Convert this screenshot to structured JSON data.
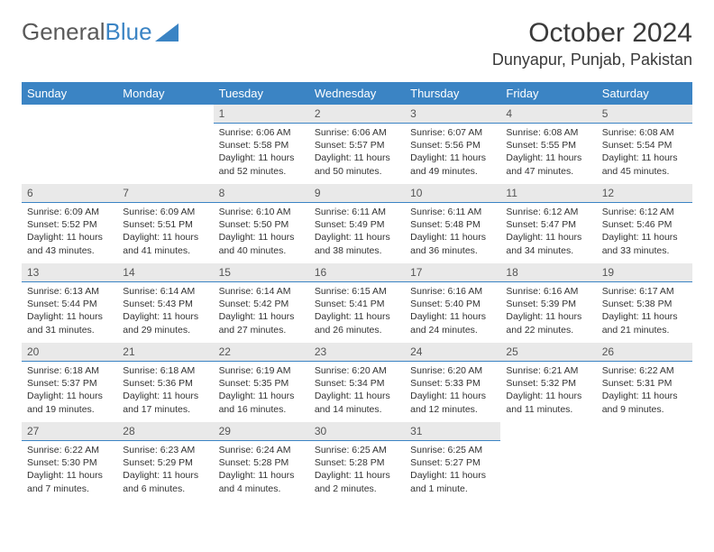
{
  "brand": {
    "part1": "General",
    "part2": "Blue"
  },
  "title": "October 2024",
  "location": "Dunyapur, Punjab, Pakistan",
  "colors": {
    "header_bg": "#3b84c4",
    "header_text": "#ffffff",
    "daynum_bg": "#e9e9e9",
    "daynum_border": "#3b84c4",
    "body_text": "#333333",
    "background": "#ffffff"
  },
  "weekdays": [
    "Sunday",
    "Monday",
    "Tuesday",
    "Wednesday",
    "Thursday",
    "Friday",
    "Saturday"
  ],
  "weeks": [
    [
      null,
      null,
      {
        "n": "1",
        "sunrise": "Sunrise: 6:06 AM",
        "sunset": "Sunset: 5:58 PM",
        "day": "Daylight: 11 hours and 52 minutes."
      },
      {
        "n": "2",
        "sunrise": "Sunrise: 6:06 AM",
        "sunset": "Sunset: 5:57 PM",
        "day": "Daylight: 11 hours and 50 minutes."
      },
      {
        "n": "3",
        "sunrise": "Sunrise: 6:07 AM",
        "sunset": "Sunset: 5:56 PM",
        "day": "Daylight: 11 hours and 49 minutes."
      },
      {
        "n": "4",
        "sunrise": "Sunrise: 6:08 AM",
        "sunset": "Sunset: 5:55 PM",
        "day": "Daylight: 11 hours and 47 minutes."
      },
      {
        "n": "5",
        "sunrise": "Sunrise: 6:08 AM",
        "sunset": "Sunset: 5:54 PM",
        "day": "Daylight: 11 hours and 45 minutes."
      }
    ],
    [
      {
        "n": "6",
        "sunrise": "Sunrise: 6:09 AM",
        "sunset": "Sunset: 5:52 PM",
        "day": "Daylight: 11 hours and 43 minutes."
      },
      {
        "n": "7",
        "sunrise": "Sunrise: 6:09 AM",
        "sunset": "Sunset: 5:51 PM",
        "day": "Daylight: 11 hours and 41 minutes."
      },
      {
        "n": "8",
        "sunrise": "Sunrise: 6:10 AM",
        "sunset": "Sunset: 5:50 PM",
        "day": "Daylight: 11 hours and 40 minutes."
      },
      {
        "n": "9",
        "sunrise": "Sunrise: 6:11 AM",
        "sunset": "Sunset: 5:49 PM",
        "day": "Daylight: 11 hours and 38 minutes."
      },
      {
        "n": "10",
        "sunrise": "Sunrise: 6:11 AM",
        "sunset": "Sunset: 5:48 PM",
        "day": "Daylight: 11 hours and 36 minutes."
      },
      {
        "n": "11",
        "sunrise": "Sunrise: 6:12 AM",
        "sunset": "Sunset: 5:47 PM",
        "day": "Daylight: 11 hours and 34 minutes."
      },
      {
        "n": "12",
        "sunrise": "Sunrise: 6:12 AM",
        "sunset": "Sunset: 5:46 PM",
        "day": "Daylight: 11 hours and 33 minutes."
      }
    ],
    [
      {
        "n": "13",
        "sunrise": "Sunrise: 6:13 AM",
        "sunset": "Sunset: 5:44 PM",
        "day": "Daylight: 11 hours and 31 minutes."
      },
      {
        "n": "14",
        "sunrise": "Sunrise: 6:14 AM",
        "sunset": "Sunset: 5:43 PM",
        "day": "Daylight: 11 hours and 29 minutes."
      },
      {
        "n": "15",
        "sunrise": "Sunrise: 6:14 AM",
        "sunset": "Sunset: 5:42 PM",
        "day": "Daylight: 11 hours and 27 minutes."
      },
      {
        "n": "16",
        "sunrise": "Sunrise: 6:15 AM",
        "sunset": "Sunset: 5:41 PM",
        "day": "Daylight: 11 hours and 26 minutes."
      },
      {
        "n": "17",
        "sunrise": "Sunrise: 6:16 AM",
        "sunset": "Sunset: 5:40 PM",
        "day": "Daylight: 11 hours and 24 minutes."
      },
      {
        "n": "18",
        "sunrise": "Sunrise: 6:16 AM",
        "sunset": "Sunset: 5:39 PM",
        "day": "Daylight: 11 hours and 22 minutes."
      },
      {
        "n": "19",
        "sunrise": "Sunrise: 6:17 AM",
        "sunset": "Sunset: 5:38 PM",
        "day": "Daylight: 11 hours and 21 minutes."
      }
    ],
    [
      {
        "n": "20",
        "sunrise": "Sunrise: 6:18 AM",
        "sunset": "Sunset: 5:37 PM",
        "day": "Daylight: 11 hours and 19 minutes."
      },
      {
        "n": "21",
        "sunrise": "Sunrise: 6:18 AM",
        "sunset": "Sunset: 5:36 PM",
        "day": "Daylight: 11 hours and 17 minutes."
      },
      {
        "n": "22",
        "sunrise": "Sunrise: 6:19 AM",
        "sunset": "Sunset: 5:35 PM",
        "day": "Daylight: 11 hours and 16 minutes."
      },
      {
        "n": "23",
        "sunrise": "Sunrise: 6:20 AM",
        "sunset": "Sunset: 5:34 PM",
        "day": "Daylight: 11 hours and 14 minutes."
      },
      {
        "n": "24",
        "sunrise": "Sunrise: 6:20 AM",
        "sunset": "Sunset: 5:33 PM",
        "day": "Daylight: 11 hours and 12 minutes."
      },
      {
        "n": "25",
        "sunrise": "Sunrise: 6:21 AM",
        "sunset": "Sunset: 5:32 PM",
        "day": "Daylight: 11 hours and 11 minutes."
      },
      {
        "n": "26",
        "sunrise": "Sunrise: 6:22 AM",
        "sunset": "Sunset: 5:31 PM",
        "day": "Daylight: 11 hours and 9 minutes."
      }
    ],
    [
      {
        "n": "27",
        "sunrise": "Sunrise: 6:22 AM",
        "sunset": "Sunset: 5:30 PM",
        "day": "Daylight: 11 hours and 7 minutes."
      },
      {
        "n": "28",
        "sunrise": "Sunrise: 6:23 AM",
        "sunset": "Sunset: 5:29 PM",
        "day": "Daylight: 11 hours and 6 minutes."
      },
      {
        "n": "29",
        "sunrise": "Sunrise: 6:24 AM",
        "sunset": "Sunset: 5:28 PM",
        "day": "Daylight: 11 hours and 4 minutes."
      },
      {
        "n": "30",
        "sunrise": "Sunrise: 6:25 AM",
        "sunset": "Sunset: 5:28 PM",
        "day": "Daylight: 11 hours and 2 minutes."
      },
      {
        "n": "31",
        "sunrise": "Sunrise: 6:25 AM",
        "sunset": "Sunset: 5:27 PM",
        "day": "Daylight: 11 hours and 1 minute."
      },
      null,
      null
    ]
  ]
}
